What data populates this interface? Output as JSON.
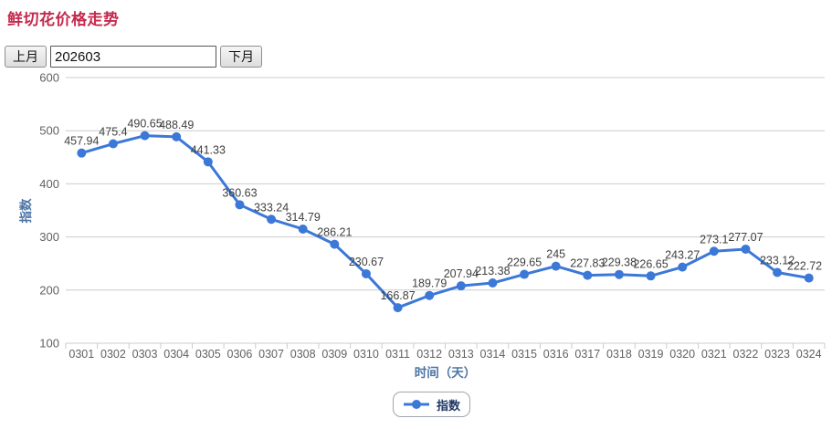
{
  "page": {
    "title": "鲜切花价格走势"
  },
  "controls": {
    "prev_label": "上月",
    "next_label": "下月",
    "month_value": "202603"
  },
  "chart_data": {
    "type": "line",
    "title": "鲜切花价格走势",
    "categories": [
      "0301",
      "0302",
      "0303",
      "0304",
      "0305",
      "0306",
      "0307",
      "0308",
      "0309",
      "0310",
      "0311",
      "0312",
      "0313",
      "0314",
      "0315",
      "0316",
      "0317",
      "0318",
      "0319",
      "0320",
      "0321",
      "0322",
      "0323",
      "0324"
    ],
    "series": [
      {
        "name": "指数",
        "values": [
          457.94,
          475.4,
          490.65,
          488.49,
          441.33,
          360.63,
          333.24,
          314.79,
          286.21,
          230.67,
          166.87,
          189.79,
          207.94,
          213.38,
          229.65,
          245,
          227.83,
          229.38,
          226.65,
          243.27,
          273.1,
          277.07,
          233.12,
          222.72
        ]
      }
    ],
    "xlabel": "时间（天）",
    "ylabel": "指数",
    "ylim": [
      100,
      600
    ],
    "y_ticks": [
      100,
      200,
      300,
      400,
      500,
      600
    ],
    "grid": true,
    "legend_position": "bottom",
    "show_point_labels": true,
    "colors": {
      "series": "#3c78d8",
      "grid": "#cccccc",
      "tick_label": "#616161",
      "data_label": "#3f3f3f",
      "axis_title": "#4c74a4",
      "legend_text": "#1f3864",
      "title": "#c5294d"
    }
  }
}
